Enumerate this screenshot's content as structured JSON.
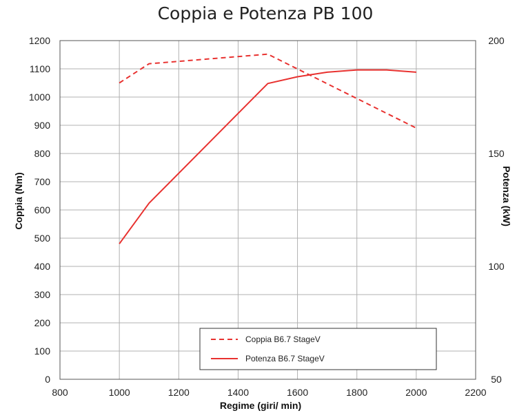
{
  "chart_data": {
    "type": "line",
    "title": "Coppia e Potenza PB 100",
    "xlabel": "Regime (giri/ min)",
    "ylabel": "Coppia (Nm)",
    "ylabel_right": "Potenza (kW)",
    "xlim": [
      800,
      2200
    ],
    "ylim": [
      0,
      1200
    ],
    "ylim_right": [
      50,
      200
    ],
    "x_ticks": [
      "800",
      "1000",
      "1200",
      "1400",
      "1600",
      "1800",
      "2000",
      "2200"
    ],
    "y_ticks": [
      "0",
      "100",
      "200",
      "300",
      "400",
      "500",
      "600",
      "700",
      "800",
      "900",
      "1000",
      "1100",
      "1200"
    ],
    "y_right_ticks": [
      "50",
      "100",
      "150",
      "200"
    ],
    "grid": true,
    "legend_position": "bottom-center",
    "series": [
      {
        "name": "Coppia B6.7 StageV",
        "axis": "left",
        "style": "dashed",
        "color": "#e8312f",
        "x": [
          1000,
          1100,
          1500,
          2000
        ],
        "y": [
          1050,
          1118,
          1152,
          890
        ]
      },
      {
        "name": "Potenza B6.7 StageV",
        "axis": "right",
        "style": "solid",
        "color": "#e8312f",
        "x": [
          1000,
          1100,
          1500,
          1600,
          1700,
          1800,
          1900,
          2000
        ],
        "y": [
          110,
          128,
          181,
          184,
          186,
          187,
          187,
          186
        ]
      }
    ]
  }
}
